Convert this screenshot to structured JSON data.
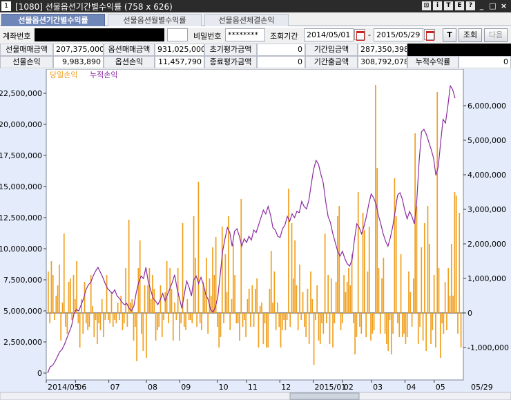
{
  "window": {
    "number": "1",
    "title": "[1080] 선물옵션기간별수익률 (758 x 626)",
    "controls": [
      "⊡",
      "i",
      "T",
      "E",
      "?",
      "_",
      "□",
      "×"
    ]
  },
  "tabs": [
    {
      "label": "선물옵션기간별수익률",
      "active": true
    },
    {
      "label": "선물옵션월별수익률",
      "active": false
    },
    {
      "label": "선물옵션체결손익",
      "active": false
    }
  ],
  "search": {
    "account_label": "계좌번호",
    "account_value": "",
    "password_label": "비밀번호",
    "password_value": "********",
    "period_label": "조회기간",
    "start_date": "2014/05/01",
    "separator": "-",
    "end_date": "2015/05/29",
    "t_button": "T",
    "query_button": "조회",
    "next_button": "다음"
  },
  "summary": {
    "row1": [
      {
        "label": "선물매매금액",
        "value": "207,375,000"
      },
      {
        "label": "옵션매매금액",
        "value": "931,025,000"
      },
      {
        "label": "초기평가금액",
        "value": "0"
      },
      {
        "label": "기간입금액",
        "value": "287,350,398"
      }
    ],
    "row2": [
      {
        "label": "선물손익",
        "value": "9,983,890"
      },
      {
        "label": "옵션손익",
        "value": "11,457,790"
      },
      {
        "label": "종료평가금액",
        "value": "0"
      },
      {
        "label": "기간출금액",
        "value": "308,792,078"
      },
      {
        "label": "누적수익률",
        "value": "0"
      }
    ]
  },
  "chart_data": {
    "type": "bar",
    "legend": [
      {
        "name": "당일손익",
        "color": "#f0a020"
      },
      {
        "name": "누적손익",
        "color": "#8a2aa0"
      }
    ],
    "legend_position": "top-left",
    "left_axis": {
      "min": 0,
      "max": 22500000,
      "ticks": [
        0,
        2500000,
        5000000,
        7500000,
        10000000,
        12500000,
        15000000,
        17500000,
        20000000,
        22500000
      ],
      "tick_labels": [
        "0",
        "2,500,000",
        "5,000,000",
        "7,500,000",
        "10,000,000",
        "12,500,000",
        "15,000,000",
        "17,500,000",
        "20,000,000",
        "22,500,000"
      ]
    },
    "right_axis": {
      "ticks": [
        -1000000,
        0,
        1000000,
        2000000,
        3000000,
        4000000,
        5000000,
        6000000
      ],
      "tick_labels": [
        "-1,000,000",
        "0",
        "1,000,000",
        "2,000,000",
        "3,000,000",
        "4,000,000",
        "5,000,000",
        "6,000,000"
      ]
    },
    "x_tick_labels": [
      "2014/05",
      "06",
      "07",
      "08",
      "09",
      "10",
      "11",
      "12",
      "2015/01",
      "02",
      "03",
      "04",
      "05",
      "05/29"
    ],
    "x_tick_positions": [
      0,
      0.07,
      0.15,
      0.24,
      0.32,
      0.41,
      0.48,
      0.56,
      0.64,
      0.71,
      0.78,
      0.86,
      0.93,
      1.15
    ],
    "cumulative_pnl": [
      0,
      500000,
      600000,
      900000,
      1300000,
      1700000,
      1900000,
      2300000,
      2800000,
      3300000,
      3800000,
      4800000,
      5100000,
      5000000,
      5500000,
      6000000,
      6700000,
      7100000,
      7300000,
      7800000,
      8200000,
      8500000,
      8100000,
      7700000,
      7200000,
      6800000,
      6600000,
      6400000,
      6700000,
      6200000,
      6000000,
      5700000,
      5500000,
      5600000,
      5200000,
      5000000,
      5400000,
      6500000,
      7300000,
      7800000,
      7600000,
      8500000,
      7300000,
      6700000,
      6000000,
      5800000,
      5500000,
      5900000,
      6400000,
      5800000,
      6300000,
      6800000,
      7300000,
      7900000,
      6800000,
      6000000,
      5200000,
      6300000,
      7400000,
      6900000,
      6200000,
      7500000,
      7800000,
      7200000,
      7700000,
      7100000,
      6300000,
      5900000,
      5100000,
      4900000,
      5300000,
      6100000,
      7900000,
      9800000,
      10800000,
      11700000,
      11300000,
      10200000,
      11400000,
      11600000,
      11000000,
      10200000,
      10800000,
      10500000,
      11000000,
      10700000,
      11500000,
      11300000,
      11900000,
      12500000,
      13100000,
      12800000,
      13400000,
      12700000,
      11700000,
      11500000,
      11000000,
      10900000,
      11600000,
      11900000,
      12600000,
      12200000,
      12800000,
      12500000,
      13000000,
      12900000,
      13800000,
      13400000,
      13200000,
      13900000,
      15200000,
      16400000,
      17100000,
      16800000,
      16000000,
      15300000,
      13800000,
      12600000,
      12100000,
      11200000,
      10500000,
      9800000,
      9400000,
      9800000,
      9200000,
      8800000,
      8600000,
      9100000,
      10700000,
      12000000,
      11700000,
      11200000,
      11800000,
      12600000,
      13600000,
      14400000,
      14100000,
      13600000,
      12700000,
      12000000,
      11200000,
      10600000,
      10200000,
      10900000,
      11800000,
      13000000,
      14300000,
      14500000,
      14000000,
      13100000,
      12400000,
      13000000,
      12600000,
      12000000,
      13800000,
      17000000,
      19400000,
      19600000,
      19200000,
      18600000,
      18000000,
      17300000,
      15900000,
      16600000,
      18600000,
      20400000,
      20100000,
      21500000,
      23100000,
      22800000,
      22100000
    ],
    "daily_pnl": [
      1200000,
      -300000,
      1500000,
      1100000,
      -200000,
      500000,
      800000,
      1400000,
      -800000,
      300000,
      2300000,
      -400000,
      -600000,
      900000,
      1000000,
      -200000,
      1100000,
      400000,
      1500000,
      -300000,
      -1000000,
      400000,
      -600000,
      900000,
      -300000,
      -500000,
      -400000,
      1100000,
      200000,
      -700000,
      -200000,
      -900000,
      -300000,
      -500000,
      400000,
      -700000,
      -200000,
      1100000,
      -200000,
      -300000,
      600000,
      -400000,
      -200000,
      -300000,
      300000,
      -200000,
      500000,
      -500000,
      -300000,
      1300000,
      -400000,
      2700000,
      300000,
      400000,
      -800000,
      -400000,
      -1400000,
      1300000,
      2100000,
      -600000,
      -1100000,
      800000,
      -1300000,
      800000,
      1300000,
      400000,
      1100000,
      700000,
      -800000,
      -500000,
      -400000,
      800000,
      -700000,
      -200000,
      600000,
      1500000,
      -300000,
      1300000,
      700000,
      -800000,
      300000,
      -200000,
      1300000,
      -800000,
      -300000,
      2600000,
      -400000,
      -500000,
      400000,
      -200000,
      -200000,
      -300000,
      2800000,
      1600000,
      -400000,
      3800000,
      -300000,
      -500000,
      900000,
      700000,
      1600000,
      -600000,
      1000000,
      500000,
      1900000,
      1100000,
      2200000,
      -400000,
      -1000000,
      -700000,
      2500000,
      -300000,
      1700000,
      600000,
      2800000,
      -500000,
      400000,
      2000000,
      1100000,
      -300000,
      -300000,
      -800000,
      3300000,
      -400000,
      -200000,
      -700000,
      400000,
      700000,
      -400000,
      800000,
      -400000,
      700000,
      1000000,
      -1000000,
      200000,
      300000,
      -900000,
      -300000,
      -1000000,
      -1000000,
      700000,
      1800000,
      300000,
      1200000,
      -500000,
      300000,
      -400000,
      -1000000,
      -500000,
      -200000,
      -500000,
      -200000,
      3600000,
      -400000,
      2600000,
      1000000,
      2100000,
      800000,
      -500000,
      1400000,
      -200000,
      600000,
      -400000,
      -700000,
      700000,
      -900000,
      1200000,
      400000,
      -1500000,
      -200000,
      800000,
      -800000,
      -900000,
      -300000,
      -600000,
      2300000,
      -300000,
      1100000,
      -900000,
      1000000,
      -1000000,
      -300000,
      900000,
      2800000,
      3100000,
      -500000,
      -300000,
      1100000,
      600000,
      900000,
      1300000,
      800000,
      1700000,
      -300000,
      -1200000,
      -700000,
      3500000,
      -400000,
      -600000,
      2900000,
      2400000,
      -700000,
      1200000,
      2500000,
      -800000,
      -600000,
      -500000,
      6600000,
      4200000,
      1300000,
      -600000,
      1000000,
      1600000,
      -600000,
      -900000,
      -1100000,
      -200000,
      -1200000,
      -600000,
      3900000,
      2800000,
      -300000,
      -700000,
      1700000,
      -700000,
      -600000,
      -900000,
      -700000,
      1200000,
      600000,
      -400000,
      1000000,
      5200000,
      3100000,
      -900000,
      -400000,
      1900000,
      -800000,
      2600000,
      -1100000,
      3100000,
      2000000,
      -900000,
      -500000,
      1100000,
      -1000000,
      6400000,
      1300000,
      -1300000,
      -300000,
      -600000,
      900000,
      -500000,
      1300000,
      500000,
      2000000,
      500000,
      3500000,
      3400000,
      -600000,
      2900000,
      -1000000
    ]
  }
}
